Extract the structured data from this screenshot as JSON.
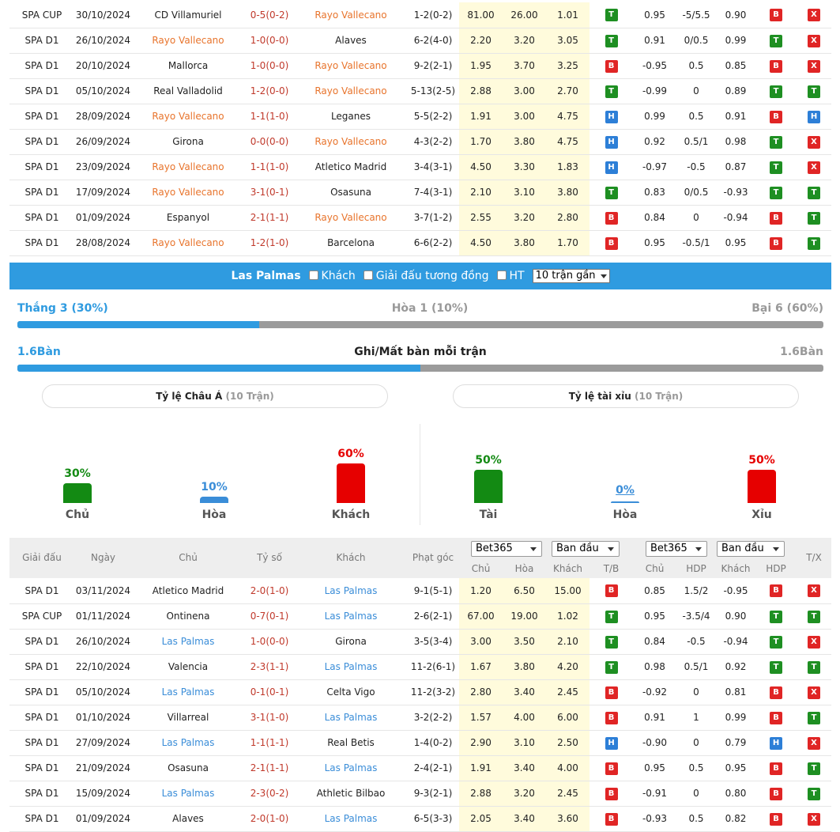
{
  "top_matches": [
    {
      "league": "SPA CUP",
      "date": "30/10/2024",
      "home": "CD Villamuriel",
      "home_hl": false,
      "score": "0-5(0-2)",
      "away": "Rayo Vallecano",
      "away_hl": true,
      "corner": "1-2(0-2)",
      "o1": "81.00",
      "o2": "26.00",
      "o3": "1.01",
      "res": "T",
      "h1": "0.95",
      "h2": "-5/5.5",
      "h3": "0.90",
      "ou": "B",
      "tx": "X"
    },
    {
      "league": "SPA D1",
      "date": "26/10/2024",
      "home": "Rayo Vallecano",
      "home_hl": true,
      "score": "1-0(0-0)",
      "away": "Alaves",
      "away_hl": false,
      "corner": "6-2(4-0)",
      "o1": "2.20",
      "o2": "3.20",
      "o3": "3.05",
      "res": "T",
      "h1": "0.91",
      "h2": "0/0.5",
      "h3": "0.99",
      "ou": "T",
      "tx": "X"
    },
    {
      "league": "SPA D1",
      "date": "20/10/2024",
      "home": "Mallorca",
      "home_hl": false,
      "score": "1-0(0-0)",
      "away": "Rayo Vallecano",
      "away_hl": true,
      "corner": "9-2(2-1)",
      "o1": "1.95",
      "o2": "3.70",
      "o3": "3.25",
      "res": "B",
      "h1": "-0.95",
      "h2": "0.5",
      "h3": "0.85",
      "ou": "B",
      "tx": "X"
    },
    {
      "league": "SPA D1",
      "date": "05/10/2024",
      "home": "Real Valladolid",
      "home_hl": false,
      "score": "1-2(0-0)",
      "away": "Rayo Vallecano",
      "away_hl": true,
      "corner": "5-13(2-5)",
      "o1": "2.88",
      "o2": "3.00",
      "o3": "2.70",
      "res": "T",
      "h1": "-0.99",
      "h2": "0",
      "h3": "0.89",
      "ou": "T",
      "tx": "T"
    },
    {
      "league": "SPA D1",
      "date": "28/09/2024",
      "home": "Rayo Vallecano",
      "home_hl": true,
      "score": "1-1(1-0)",
      "away": "Leganes",
      "away_hl": false,
      "corner": "5-5(2-2)",
      "o1": "1.91",
      "o2": "3.00",
      "o3": "4.75",
      "res": "H",
      "h1": "0.99",
      "h2": "0.5",
      "h3": "0.91",
      "ou": "B",
      "tx": "H"
    },
    {
      "league": "SPA D1",
      "date": "26/09/2024",
      "home": "Girona",
      "home_hl": false,
      "score": "0-0(0-0)",
      "away": "Rayo Vallecano",
      "away_hl": true,
      "corner": "4-3(2-2)",
      "o1": "1.70",
      "o2": "3.80",
      "o3": "4.75",
      "res": "H",
      "h1": "0.92",
      "h2": "0.5/1",
      "h3": "0.98",
      "ou": "T",
      "tx": "X"
    },
    {
      "league": "SPA D1",
      "date": "23/09/2024",
      "home": "Rayo Vallecano",
      "home_hl": true,
      "score": "1-1(1-0)",
      "away": "Atletico Madrid",
      "away_hl": false,
      "corner": "3-4(3-1)",
      "o1": "4.50",
      "o2": "3.30",
      "o3": "1.83",
      "res": "H",
      "h1": "-0.97",
      "h2": "-0.5",
      "h3": "0.87",
      "ou": "T",
      "tx": "X"
    },
    {
      "league": "SPA D1",
      "date": "17/09/2024",
      "home": "Rayo Vallecano",
      "home_hl": true,
      "score": "3-1(0-1)",
      "away": "Osasuna",
      "away_hl": false,
      "corner": "7-4(3-1)",
      "o1": "2.10",
      "o2": "3.10",
      "o3": "3.80",
      "res": "T",
      "h1": "0.83",
      "h2": "0/0.5",
      "h3": "-0.93",
      "ou": "T",
      "tx": "T"
    },
    {
      "league": "SPA D1",
      "date": "01/09/2024",
      "home": "Espanyol",
      "home_hl": false,
      "score": "2-1(1-1)",
      "away": "Rayo Vallecano",
      "away_hl": true,
      "corner": "3-7(1-2)",
      "o1": "2.55",
      "o2": "3.20",
      "o3": "2.80",
      "res": "B",
      "h1": "0.84",
      "h2": "0",
      "h3": "-0.94",
      "ou": "B",
      "tx": "T"
    },
    {
      "league": "SPA D1",
      "date": "28/08/2024",
      "home": "Rayo Vallecano",
      "home_hl": true,
      "score": "1-2(1-0)",
      "away": "Barcelona",
      "away_hl": false,
      "corner": "6-6(2-2)",
      "o1": "4.50",
      "o2": "3.80",
      "o3": "1.70",
      "res": "B",
      "h1": "0.95",
      "h2": "-0.5/1",
      "h3": "0.95",
      "ou": "B",
      "tx": "T"
    }
  ],
  "filter": {
    "team": "Las Palmas",
    "away_label": "Khách",
    "same_league_label": "Giải đấu tương đồng",
    "ht_label": "HT",
    "recent_select": "10 trận gần"
  },
  "summary": {
    "win_text": "Thắng 3 (30%)",
    "draw_text": "Hòa 1 (10%)",
    "loss_text": "Bại 6 (60%)",
    "win_ratio": 0.3,
    "goals_for": "1.6Bàn",
    "goals_title": "Ghi/Mất bàn mỗi trận",
    "goals_against": "1.6Bàn",
    "goals_ratio": 0.5
  },
  "asia": {
    "title": "Tỷ lệ Châu Á",
    "count": "(10 Trận)",
    "bars": [
      {
        "pct": "30%",
        "value": 30,
        "label": "Chủ",
        "color": "#138a13"
      },
      {
        "pct": "10%",
        "value": 10,
        "label": "Hòa",
        "color": "#3a8dd8"
      },
      {
        "pct": "60%",
        "value": 60,
        "label": "Khách",
        "color": "#e60000"
      }
    ]
  },
  "ou": {
    "title": "Tỷ lệ tài xỉu",
    "count": "(10 Trận)",
    "bars": [
      {
        "pct": "50%",
        "value": 50,
        "label": "Tài",
        "color": "#138a13"
      },
      {
        "pct": "0%",
        "value": 0,
        "label": "Hòa",
        "color": "#3a8dd8"
      },
      {
        "pct": "50%",
        "value": 50,
        "label": "Xỉu",
        "color": "#e60000"
      }
    ]
  },
  "header": {
    "league": "Giải đấu",
    "date": "Ngày",
    "home": "Chủ",
    "score": "Tỷ số",
    "away": "Khách",
    "corner": "Phạt góc",
    "book1": "Bet365",
    "type1": "Ban đầu",
    "book2": "Bet365",
    "type2": "Ban đầu",
    "o_home": "Chủ",
    "o_draw": "Hòa",
    "o_away": "Khách",
    "tb": "T/B",
    "h_home": "Chủ",
    "hdp": "HDP",
    "h_away": "Khách",
    "hdp2": "HDP",
    "tx": "T/X"
  },
  "bottom_matches": [
    {
      "league": "SPA D1",
      "date": "03/11/2024",
      "home": "Atletico Madrid",
      "home_hl": false,
      "score": "2-0(1-0)",
      "away": "Las Palmas",
      "away_hl": true,
      "corner": "9-1(5-1)",
      "o1": "1.20",
      "o2": "6.50",
      "o3": "15.00",
      "res": "B",
      "h1": "0.85",
      "h2": "1.5/2",
      "h3": "-0.95",
      "ou": "B",
      "tx": "X"
    },
    {
      "league": "SPA CUP",
      "date": "01/11/2024",
      "home": "Ontinena",
      "home_hl": false,
      "score": "0-7(0-1)",
      "away": "Las Palmas",
      "away_hl": true,
      "corner": "2-6(2-1)",
      "o1": "67.00",
      "o2": "19.00",
      "o3": "1.02",
      "res": "T",
      "h1": "0.95",
      "h2": "-3.5/4",
      "h3": "0.90",
      "ou": "T",
      "tx": "T"
    },
    {
      "league": "SPA D1",
      "date": "26/10/2024",
      "home": "Las Palmas",
      "home_hl": true,
      "score": "1-0(0-0)",
      "away": "Girona",
      "away_hl": false,
      "corner": "3-5(3-4)",
      "o1": "3.00",
      "o2": "3.50",
      "o3": "2.10",
      "res": "T",
      "h1": "0.84",
      "h2": "-0.5",
      "h3": "-0.94",
      "ou": "T",
      "tx": "X"
    },
    {
      "league": "SPA D1",
      "date": "22/10/2024",
      "home": "Valencia",
      "home_hl": false,
      "score": "2-3(1-1)",
      "away": "Las Palmas",
      "away_hl": true,
      "corner": "11-2(6-1)",
      "o1": "1.67",
      "o2": "3.80",
      "o3": "4.20",
      "res": "T",
      "h1": "0.98",
      "h2": "0.5/1",
      "h3": "0.92",
      "ou": "T",
      "tx": "T"
    },
    {
      "league": "SPA D1",
      "date": "05/10/2024",
      "home": "Las Palmas",
      "home_hl": true,
      "score": "0-1(0-1)",
      "away": "Celta Vigo",
      "away_hl": false,
      "corner": "11-2(3-2)",
      "o1": "2.80",
      "o2": "3.40",
      "o3": "2.45",
      "res": "B",
      "h1": "-0.92",
      "h2": "0",
      "h3": "0.81",
      "ou": "B",
      "tx": "X"
    },
    {
      "league": "SPA D1",
      "date": "01/10/2024",
      "home": "Villarreal",
      "home_hl": false,
      "score": "3-1(1-0)",
      "away": "Las Palmas",
      "away_hl": true,
      "corner": "3-2(2-2)",
      "o1": "1.57",
      "o2": "4.00",
      "o3": "6.00",
      "res": "B",
      "h1": "0.91",
      "h2": "1",
      "h3": "0.99",
      "ou": "B",
      "tx": "T"
    },
    {
      "league": "SPA D1",
      "date": "27/09/2024",
      "home": "Las Palmas",
      "home_hl": true,
      "score": "1-1(1-1)",
      "away": "Real Betis",
      "away_hl": false,
      "corner": "1-4(0-2)",
      "o1": "2.90",
      "o2": "3.10",
      "o3": "2.50",
      "res": "H",
      "h1": "-0.90",
      "h2": "0",
      "h3": "0.79",
      "ou": "H",
      "tx": "X"
    },
    {
      "league": "SPA D1",
      "date": "21/09/2024",
      "home": "Osasuna",
      "home_hl": false,
      "score": "2-1(1-1)",
      "away": "Las Palmas",
      "away_hl": true,
      "corner": "2-4(2-1)",
      "o1": "1.91",
      "o2": "3.40",
      "o3": "4.00",
      "res": "B",
      "h1": "0.95",
      "h2": "0.5",
      "h3": "0.95",
      "ou": "B",
      "tx": "T"
    },
    {
      "league": "SPA D1",
      "date": "15/09/2024",
      "home": "Las Palmas",
      "home_hl": true,
      "score": "2-3(0-2)",
      "away": "Athletic Bilbao",
      "away_hl": false,
      "corner": "9-3(2-1)",
      "o1": "2.88",
      "o2": "3.20",
      "o3": "2.45",
      "res": "B",
      "h1": "-0.91",
      "h2": "0",
      "h3": "0.80",
      "ou": "B",
      "tx": "T"
    },
    {
      "league": "SPA D1",
      "date": "01/09/2024",
      "home": "Alaves",
      "home_hl": false,
      "score": "2-0(1-0)",
      "away": "Las Palmas",
      "away_hl": true,
      "corner": "6-5(3-3)",
      "o1": "2.05",
      "o2": "3.40",
      "o3": "3.60",
      "res": "B",
      "h1": "-0.93",
      "h2": "0.5",
      "h3": "0.82",
      "ou": "B",
      "tx": "X"
    }
  ]
}
